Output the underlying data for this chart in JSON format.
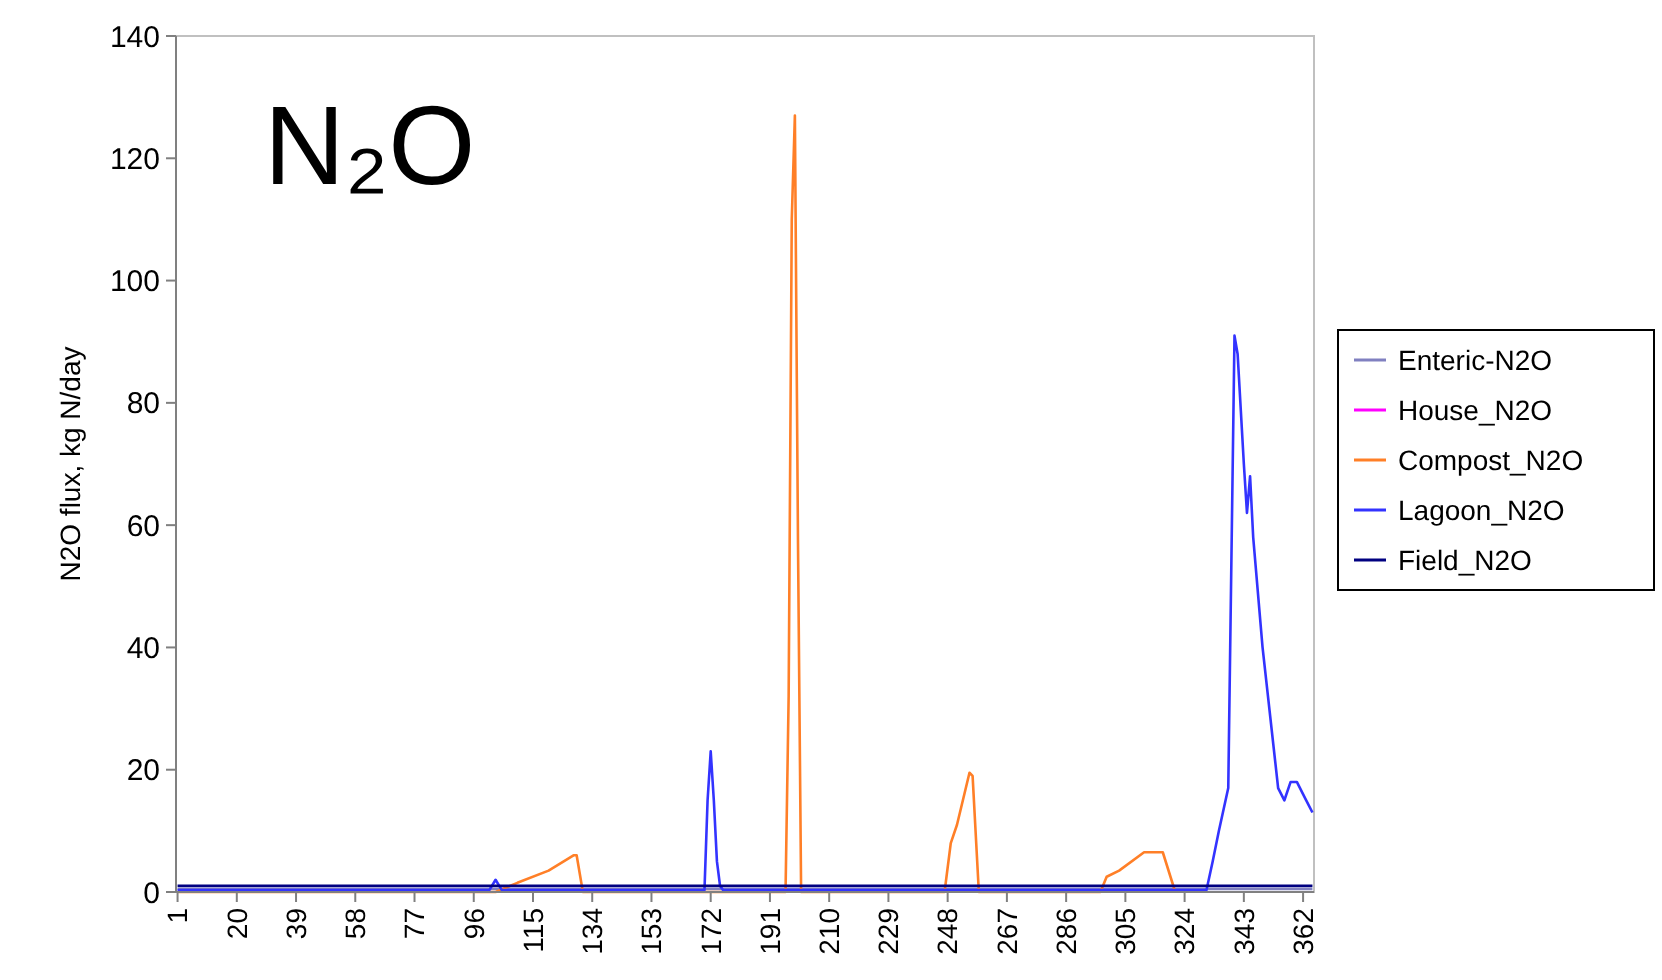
{
  "chart_data": {
    "type": "line",
    "title": "N₂O",
    "ylabel": "N2O flux, kg N/day",
    "xlim": [
      0.5,
      365.5
    ],
    "ylim": [
      0,
      140
    ],
    "yticks": [
      0,
      20,
      40,
      60,
      80,
      100,
      120,
      140
    ],
    "xticks": [
      1,
      20,
      39,
      58,
      77,
      96,
      115,
      134,
      153,
      172,
      191,
      210,
      229,
      248,
      267,
      286,
      305,
      324,
      343,
      362
    ],
    "grid": false,
    "legend": "right",
    "line_style": "solid",
    "series": [
      {
        "name": "Enteric-N2O",
        "color": "#8080c0",
        "x": [
          1,
          365
        ],
        "values": [
          0.5,
          0.5
        ]
      },
      {
        "name": "House_N2O",
        "color": "#ff00ff"
      },
      {
        "name": "Compost_N2O",
        "color": "#ff7f27",
        "x": [
          1,
          100,
          103,
          110,
          120,
          128,
          129,
          131,
          196,
          197,
          198,
          199,
          200,
          201,
          247,
          249,
          251,
          255,
          256,
          258,
          297,
          299,
          303,
          311,
          317,
          321
        ],
        "values": [
          0,
          0,
          0,
          1.5,
          3.5,
          6,
          6,
          0,
          0,
          32,
          110,
          127,
          57,
          0,
          0,
          8,
          11,
          19.5,
          19,
          0,
          0,
          2.5,
          3.5,
          6.5,
          6.5,
          0
        ]
      },
      {
        "name": "Lagoon_N2O",
        "color": "#3333ff",
        "x": [
          1,
          101,
          103,
          105,
          170,
          171,
          172,
          173,
          174,
          175,
          176,
          331,
          333,
          335,
          338,
          340,
          341,
          343,
          344,
          345,
          346,
          349,
          354,
          356,
          358,
          360,
          363,
          365
        ],
        "values": [
          0.3,
          0.3,
          2,
          0.3,
          0.3,
          15,
          23,
          15,
          5,
          1,
          0.3,
          0.3,
          5,
          10,
          17,
          91,
          88,
          70,
          62,
          68,
          58,
          40,
          17,
          15,
          18,
          18,
          15,
          13
        ]
      },
      {
        "name": "Field_N2O",
        "color": "#000080",
        "x": [
          1,
          365
        ],
        "values": [
          1,
          1
        ]
      }
    ]
  }
}
